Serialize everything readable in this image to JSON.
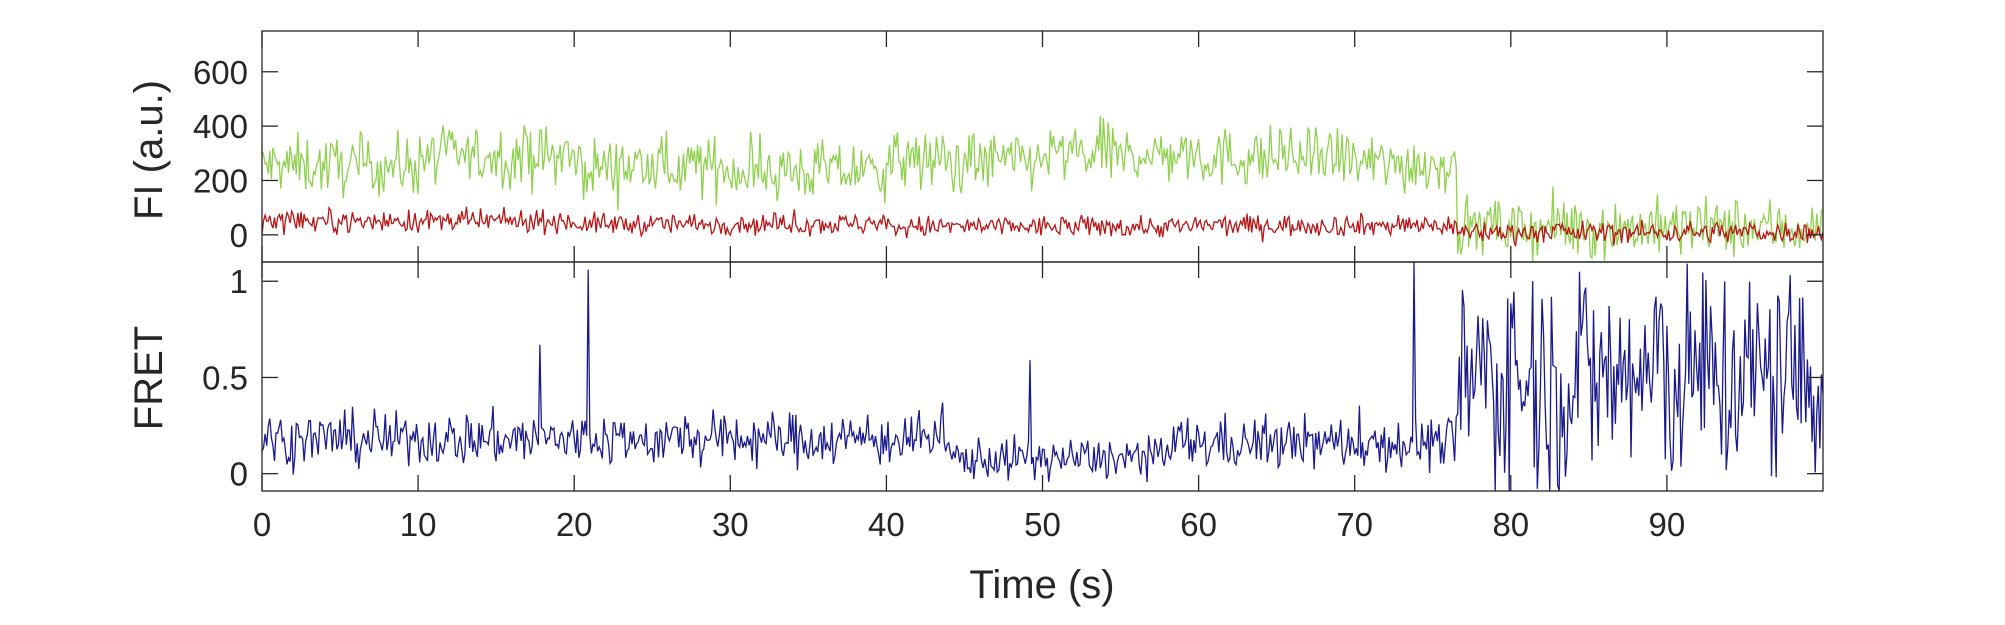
{
  "chart_data": [
    {
      "type": "line",
      "panel": "top",
      "ylabel": "FI (a.u.)",
      "xlabel": "",
      "xlim": [
        0,
        100
      ],
      "ylim": [
        -100,
        750
      ],
      "yticks": [
        0,
        200,
        400,
        600
      ],
      "ytick_labels": [
        "0",
        "200",
        "400",
        "600"
      ],
      "xticks": [
        0,
        10,
        20,
        30,
        40,
        50,
        60,
        70,
        80,
        90
      ],
      "grid": false,
      "series": [
        {
          "id": "donor",
          "color": "#8fd14f",
          "dt": 0.1,
          "noise": 110,
          "segments": [
            {
              "t0": 0,
              "t1": 10,
              "mean": 255
            },
            {
              "t0": 10,
              "t1": 20,
              "mean": 290
            },
            {
              "t0": 20,
              "t1": 30,
              "mean": 250
            },
            {
              "t0": 30,
              "t1": 40,
              "mean": 235
            },
            {
              "t0": 40,
              "t1": 50,
              "mean": 270
            },
            {
              "t0": 50,
              "t1": 60,
              "mean": 295
            },
            {
              "t0": 60,
              "t1": 70,
              "mean": 285
            },
            {
              "t0": 70,
              "t1": 76.5,
              "mean": 260
            },
            {
              "t0": 76.5,
              "t1": 100,
              "mean": 25
            }
          ]
        },
        {
          "id": "acceptor",
          "color": "#b81414",
          "dt": 0.1,
          "noise": 40,
          "segments": [
            {
              "t0": 0,
              "t1": 20,
              "mean": 50
            },
            {
              "t0": 20,
              "t1": 40,
              "mean": 40
            },
            {
              "t0": 40,
              "t1": 60,
              "mean": 30
            },
            {
              "t0": 60,
              "t1": 76.5,
              "mean": 35
            },
            {
              "t0": 76.5,
              "t1": 100,
              "mean": 10
            }
          ]
        }
      ]
    },
    {
      "type": "line",
      "panel": "bottom",
      "ylabel": "FRET",
      "xlabel": "Time (s)",
      "xlim": [
        0,
        100
      ],
      "ylim": [
        -0.09,
        1.1
      ],
      "yticks": [
        0,
        0.5,
        1
      ],
      "ytick_labels": [
        "0",
        "0.5",
        "1"
      ],
      "xticks": [
        0,
        10,
        20,
        30,
        40,
        50,
        60,
        70,
        80,
        90
      ],
      "xtick_labels": [
        "0",
        "10",
        "20",
        "30",
        "40",
        "50",
        "60",
        "70",
        "80",
        "90"
      ],
      "grid": false,
      "series": [
        {
          "id": "fret",
          "color": "#1a1a8c",
          "dt": 0.1,
          "segments": [
            {
              "t0": 0,
              "t1": 44,
              "mean": 0.18,
              "noise": 0.14
            },
            {
              "t0": 44,
              "t1": 58,
              "mean": 0.08,
              "noise": 0.11
            },
            {
              "t0": 58,
              "t1": 76.5,
              "mean": 0.16,
              "noise": 0.14
            },
            {
              "t0": 76.5,
              "t1": 100,
              "mean": 0.5,
              "noise": 0.6
            }
          ],
          "spikes": [
            {
              "x": 20.9,
              "y": 1.06
            },
            {
              "x": 17.8,
              "y": 0.67
            },
            {
              "x": 49.2,
              "y": 0.59
            },
            {
              "x": 73.8,
              "y": 1.1
            }
          ]
        }
      ]
    }
  ]
}
